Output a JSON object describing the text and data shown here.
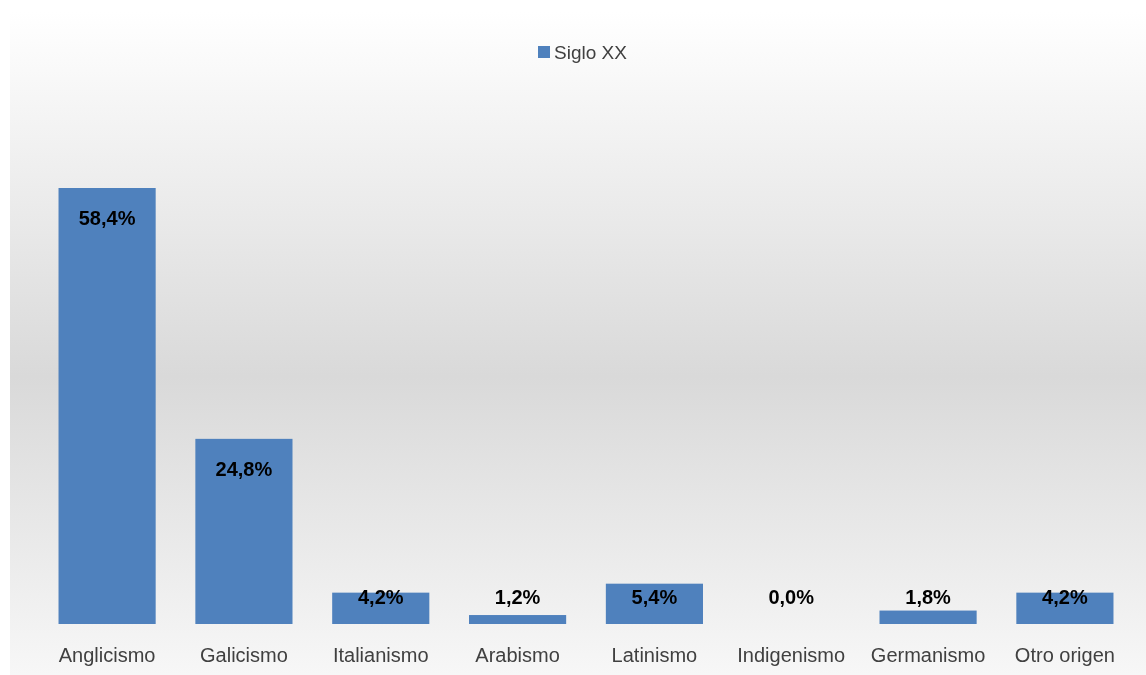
{
  "chart_data": {
    "type": "bar",
    "categories": [
      "Anglicismo",
      "Galicismo",
      "Italianismo",
      "Arabismo",
      "Latinismo",
      "Indigenismo",
      "Germanismo",
      "Otro origen"
    ],
    "series": [
      {
        "name": "Siglo XX",
        "color": "#4f81bd",
        "values": [
          58.4,
          24.8,
          4.2,
          1.2,
          5.4,
          0.0,
          1.8,
          4.2
        ],
        "value_labels": [
          "58,4%",
          "24,8%",
          "4,2%",
          "1,2%",
          "5,4%",
          "0,0%",
          "1,8%",
          "4,2%"
        ]
      }
    ],
    "legend": "top"
  }
}
